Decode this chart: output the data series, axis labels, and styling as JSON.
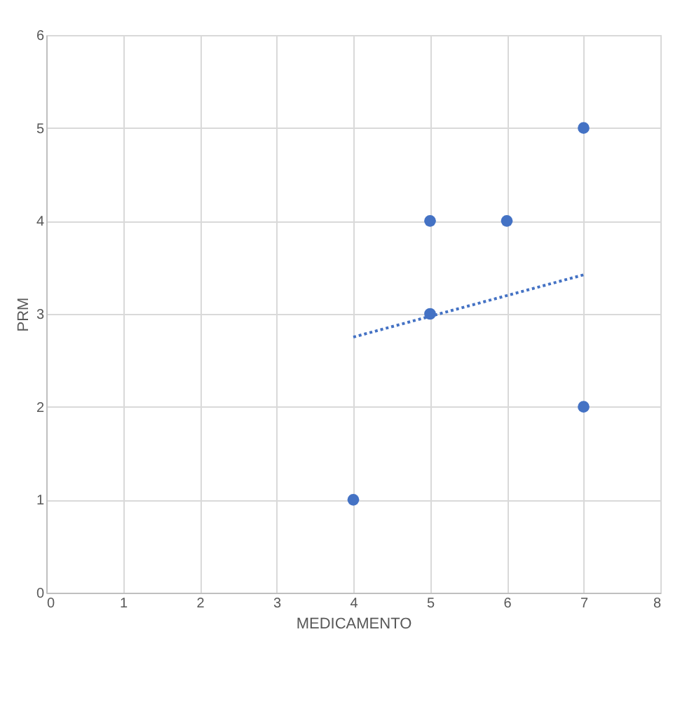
{
  "chart_data": {
    "type": "scatter",
    "xlabel": "MEDICAMENTO",
    "ylabel": "PRM",
    "xlim": [
      0,
      8
    ],
    "xticks": [
      0,
      1,
      2,
      3,
      4,
      5,
      6,
      7,
      8
    ],
    "ylim": [
      0,
      6
    ],
    "yticks": [
      0,
      1,
      2,
      3,
      4,
      5,
      6
    ],
    "grid": true,
    "marker": "circle",
    "series": [
      {
        "color": "#4472c4",
        "x": [
          4,
          5,
          5,
          6,
          7,
          7
        ],
        "values": [
          1,
          3,
          4,
          4,
          5,
          2
        ]
      },
      {
        "type": "line",
        "color": "#4472c4",
        "line_style": "dotted",
        "marker": "none",
        "x": [
          4,
          7
        ],
        "values": [
          2.75,
          3.42
        ]
      }
    ]
  }
}
